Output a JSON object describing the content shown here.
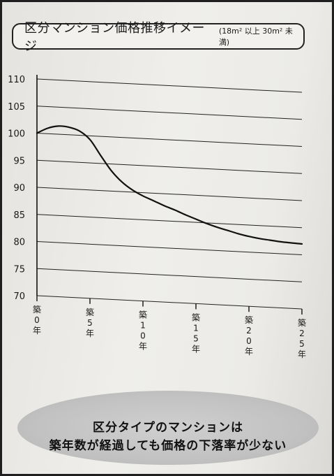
{
  "header": {
    "title": "区分マンション価格推移イメージ",
    "subtitle": "(18m² 以上 30m² 未満)"
  },
  "chart_data": {
    "type": "line",
    "title": "区分マンション価格推移イメージ",
    "subtitle": "(18m² 以上 30m² 未満)",
    "xlabel": "",
    "ylabel": "",
    "xlim": [
      0,
      25
    ],
    "ylim": [
      70,
      110
    ],
    "yticks": [
      70,
      75,
      80,
      85,
      90,
      95,
      100,
      105,
      110
    ],
    "xticks": [
      {
        "value": 0,
        "label": "築0年"
      },
      {
        "value": 5,
        "label": "築5年"
      },
      {
        "value": 10,
        "label": "築10年"
      },
      {
        "value": 15,
        "label": "築15年"
      },
      {
        "value": 20,
        "label": "築20年"
      },
      {
        "value": 25,
        "label": "築25年"
      }
    ],
    "grid": true,
    "series": [
      {
        "x": [
          0,
          1,
          2,
          3,
          4,
          5,
          6,
          7,
          8,
          9,
          10,
          11,
          12,
          13,
          14,
          15,
          16,
          17,
          18,
          19,
          20,
          21,
          22,
          23,
          24,
          25
        ],
        "y": [
          100,
          101,
          101.5,
          101.4,
          100.8,
          99.3,
          96.5,
          93.8,
          91.8,
          90.4,
          89.4,
          88.6,
          87.8,
          87.1,
          86.3,
          85.6,
          84.9,
          84.3,
          83.8,
          83.3,
          82.9,
          82.6,
          82.4,
          82.2,
          82.1,
          82.0
        ]
      }
    ]
  },
  "callout": {
    "line1": "区分タイプのマンションは",
    "line2": "築年数が経過しても価格の下落率が少ない"
  }
}
